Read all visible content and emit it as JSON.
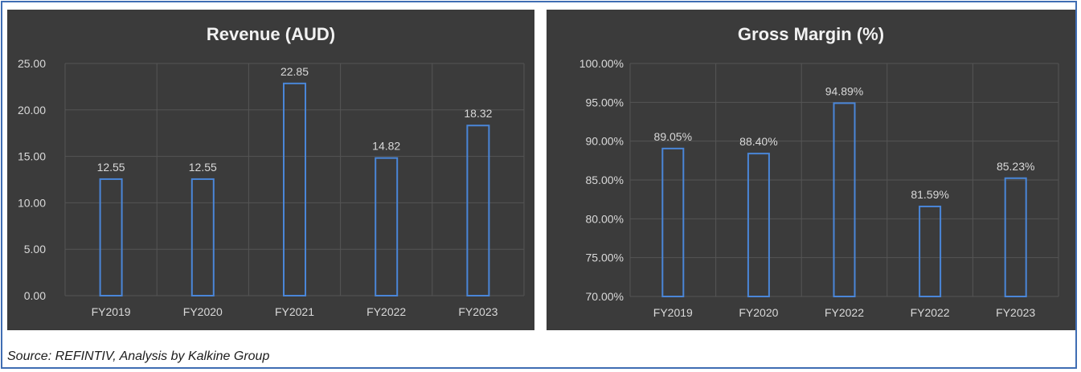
{
  "colors": {
    "panel_bg": "#3b3b3b",
    "gridline": "#555555",
    "bar_stroke": "#4a86d8",
    "text": "#d9d9d9",
    "title": "#f2f2f2",
    "frame_border": "#3f6db3"
  },
  "footer": {
    "source": "Source: REFINTIV, Analysis by Kalkine Group"
  },
  "chart_data": [
    {
      "type": "bar",
      "title": "Revenue (AUD)",
      "xlabel": "",
      "ylabel": "",
      "categories": [
        "FY2019",
        "FY2020",
        "FY2021",
        "FY2022",
        "FY2023"
      ],
      "values": [
        12.55,
        12.55,
        22.85,
        14.82,
        18.32
      ],
      "data_labels": [
        "12.55",
        "12.55",
        "22.85",
        "14.82",
        "18.32"
      ],
      "ylim": [
        0,
        25
      ],
      "yticks": [
        0,
        5,
        10,
        15,
        20,
        25
      ],
      "ytick_labels": [
        "0.00",
        "5.00",
        "10.00",
        "15.00",
        "20.00",
        "25.00"
      ],
      "grid": true,
      "legend": "none"
    },
    {
      "type": "bar",
      "title": "Gross Margin (%)",
      "xlabel": "",
      "ylabel": "",
      "categories": [
        "FY2019",
        "FY2020",
        "FY2022",
        "FY2022",
        "FY2023"
      ],
      "values": [
        89.05,
        88.4,
        94.89,
        81.59,
        85.23
      ],
      "data_labels": [
        "89.05%",
        "88.40%",
        "94.89%",
        "81.59%",
        "85.23%"
      ],
      "ylim": [
        70,
        100
      ],
      "yticks": [
        70,
        75,
        80,
        85,
        90,
        95,
        100
      ],
      "ytick_labels": [
        "70.00%",
        "75.00%",
        "80.00%",
        "85.00%",
        "90.00%",
        "95.00%",
        "100.00%"
      ],
      "grid": true,
      "legend": "none"
    }
  ]
}
